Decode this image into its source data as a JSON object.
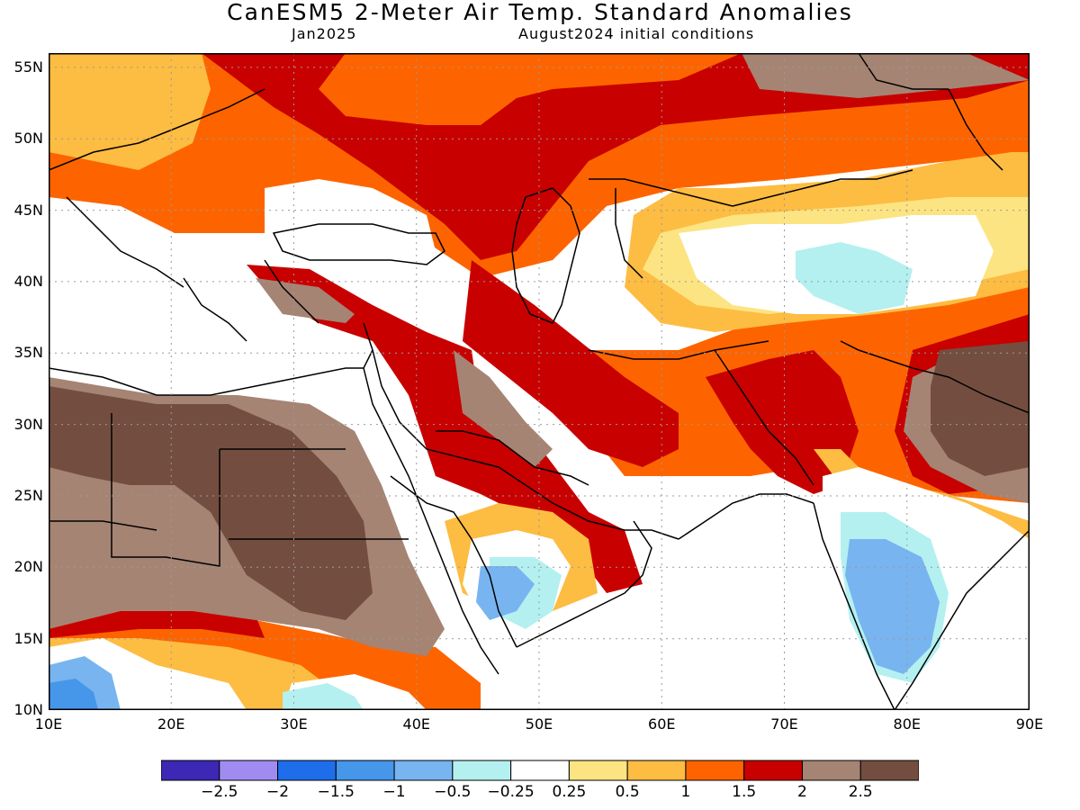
{
  "header": {
    "title": "CanESM5 2-Meter Air Temp. Standard Anomalies",
    "valid_month": "Jan2025",
    "init": "August2024 initial conditions"
  },
  "map": {
    "lon_range": [
      10,
      90
    ],
    "lat_range": [
      10,
      56
    ],
    "lat_ticks": [
      "55N",
      "50N",
      "45N",
      "40N",
      "35N",
      "30N",
      "25N",
      "20N",
      "15N",
      "10N"
    ],
    "lat_values": [
      55,
      50,
      45,
      40,
      35,
      30,
      25,
      20,
      15,
      10
    ],
    "lon_ticks": [
      "10E",
      "20E",
      "30E",
      "40E",
      "50E",
      "60E",
      "70E",
      "80E",
      "90E"
    ],
    "lon_values": [
      10,
      20,
      30,
      40,
      50,
      60,
      70,
      80,
      90
    ],
    "gridlines": "dotted",
    "colors": {
      "pos_0_25_0_5": "#fde482",
      "pos_0_5_1": "#fdbc42",
      "pos_1_1_5": "#fd6400",
      "pos_1_5_2": "#c80000",
      "pos_2_2_5": "#a58474",
      "pos_gt_2_5": "#734e40",
      "neg_0_25_0_5": "#b4f0f0",
      "neg_0_5_1": "#78b4f0",
      "neg_1_1_5": "#4696ea",
      "coast": "#000000"
    }
  },
  "colorbar": {
    "colors": [
      "#3c28b4",
      "#a08cf0",
      "#1e6eeb",
      "#4696ea",
      "#78b4f0",
      "#b4f0f0",
      "#ffffff",
      "#fde482",
      "#fdbc42",
      "#fd6400",
      "#c80000",
      "#a58474",
      "#734e40"
    ],
    "labels": [
      "−2.5",
      "−2",
      "−1.5",
      "−1",
      "−0.5",
      "−0.25",
      "0.25",
      "0.5",
      "1",
      "1.5",
      "2",
      "2.5"
    ]
  }
}
